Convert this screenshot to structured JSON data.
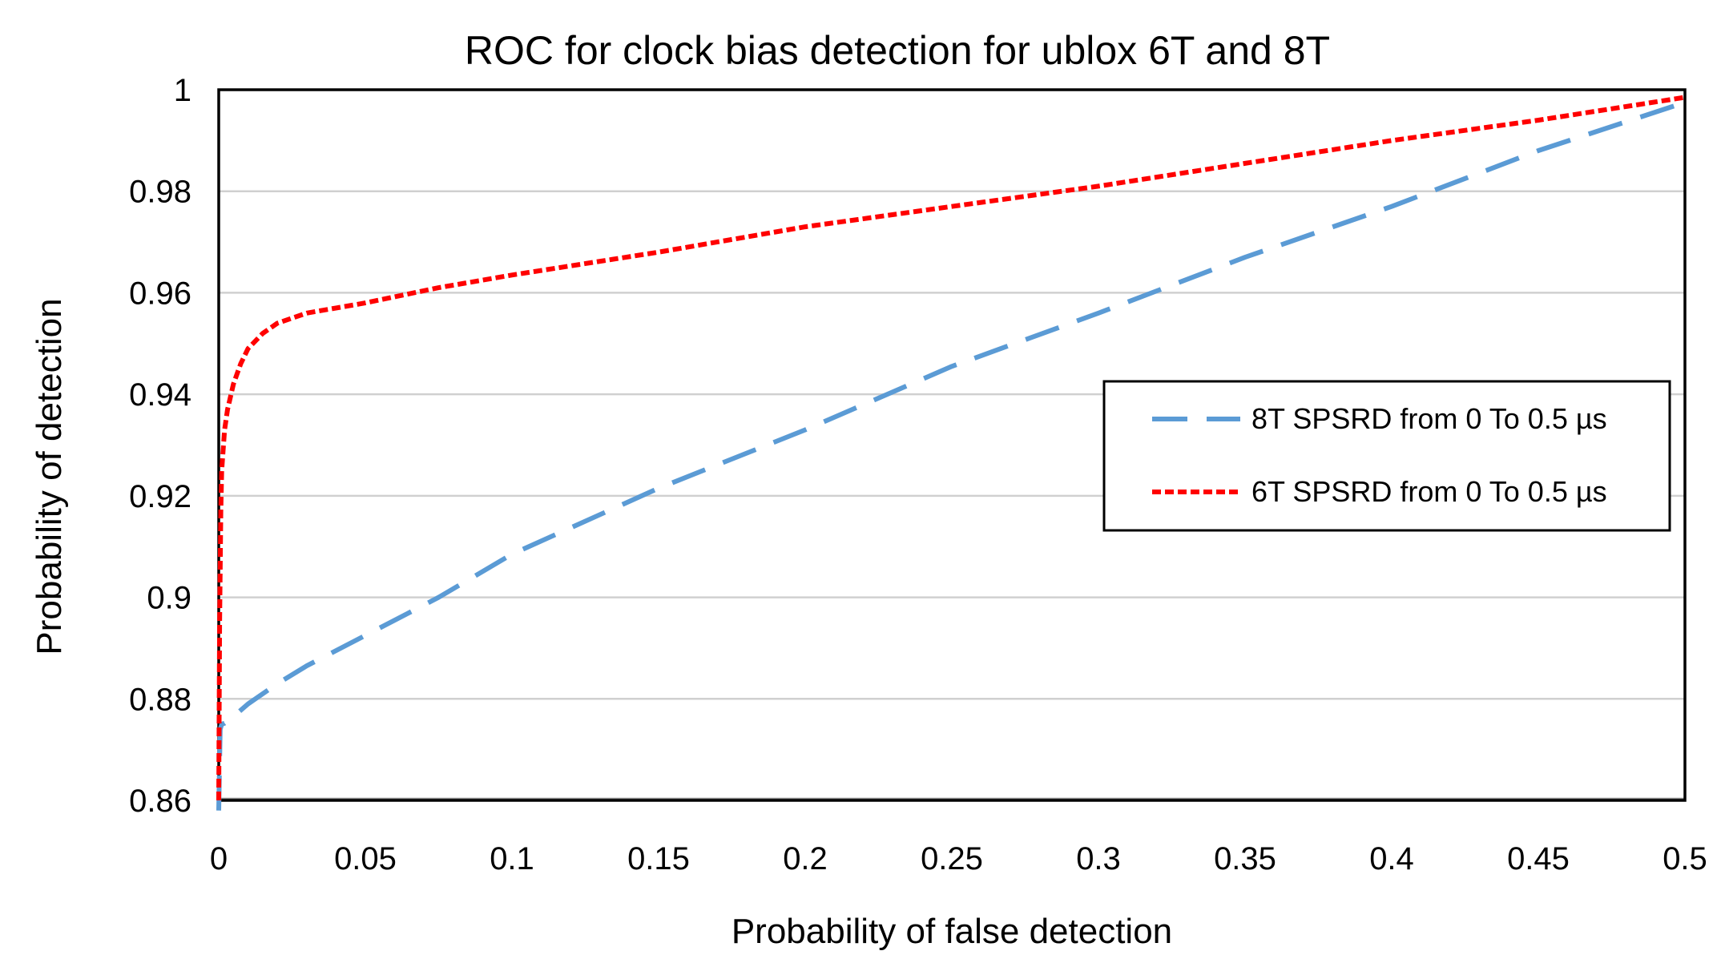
{
  "chart_data": {
    "type": "line",
    "title": "ROC for clock bias detection for ublox 6T and 8T",
    "xlabel": "Probability of false detection",
    "ylabel": "Probability of detection",
    "xlim": [
      0,
      0.5
    ],
    "ylim": [
      0.86,
      1
    ],
    "x_ticks": [
      "0",
      "0.05",
      "0.1",
      "0.15",
      "0.2",
      "0.25",
      "0.3",
      "0.35",
      "0.4",
      "0.45",
      "0.5"
    ],
    "y_ticks": [
      "0.86",
      "0.88",
      "0.9",
      "0.92",
      "0.94",
      "0.96",
      "0.98",
      "1"
    ],
    "grid": "horizontal",
    "legend_position": "right",
    "series": [
      {
        "name": "8T SPSRD from 0 To 0.5 µs",
        "color": "#5b9bd5",
        "style": "long-dash",
        "x": [
          0,
          0.0005,
          0.001,
          0.002,
          0.005,
          0.01,
          0.02,
          0.03,
          0.05,
          0.075,
          0.1,
          0.15,
          0.2,
          0.25,
          0.3,
          0.35,
          0.4,
          0.45,
          0.5
        ],
        "y": [
          0.858,
          0.874,
          0.875,
          0.8752,
          0.8765,
          0.879,
          0.883,
          0.8865,
          0.8925,
          0.9,
          0.9085,
          0.9215,
          0.933,
          0.9455,
          0.956,
          0.967,
          0.977,
          0.988,
          0.9975
        ]
      },
      {
        "name": "6T SPSRD from 0 To 0.5 µs",
        "color": "#ff0000",
        "style": "short-dash",
        "x": [
          0,
          0.0003,
          0.0007,
          0.001,
          0.002,
          0.003,
          0.005,
          0.0075,
          0.01,
          0.015,
          0.02,
          0.03,
          0.05,
          0.075,
          0.1,
          0.15,
          0.2,
          0.25,
          0.3,
          0.35,
          0.4,
          0.45,
          0.5
        ],
        "y": [
          0.86,
          0.895,
          0.917,
          0.925,
          0.933,
          0.937,
          0.942,
          0.946,
          0.949,
          0.952,
          0.954,
          0.956,
          0.958,
          0.961,
          0.9635,
          0.968,
          0.973,
          0.977,
          0.981,
          0.9855,
          0.99,
          0.994,
          0.9985
        ]
      }
    ]
  }
}
